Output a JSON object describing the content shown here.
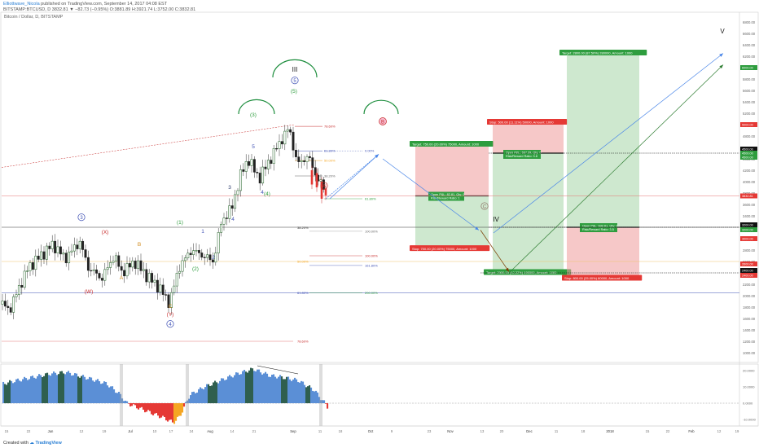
{
  "header": {
    "publisher": "Elliottwave_Nicola",
    "published_text": "published on TradingView.com, September 14, 2017 04:08 EST",
    "ticker_line": "BITSTAMP:BTCUSD, D  3832.81 ▼ −82.73 (−0.95%)  O:3881.89 H:3921.74 L:3752.00 C:3832.81",
    "symbol_title": "Bitcoin / Dollar, D, BITSTAMP"
  },
  "footer": {
    "created_with": "Created with",
    "brand": "TradingView"
  },
  "colors": {
    "bull": "#26a69a",
    "bull_fill": "#2e7d32",
    "bear": "#c62828",
    "wave_blue": "#3f51b5",
    "wave_green": "#2e9d3e",
    "wave_red": "#c62828",
    "wave_orange": "#d08a1a",
    "arc_green": "#1e8e3e",
    "target_green": "#2e9d3e",
    "stop_red": "#e53935",
    "osc_blue": "#5b8fd6",
    "osc_dark": "#2f5f4f",
    "osc_red": "#e53935",
    "osc_orange": "#f5a623"
  },
  "chart_data": {
    "type": "candlestick",
    "x_ticks": [
      "15",
      "22",
      "Jun",
      "12",
      "19",
      "Jul",
      "10",
      "17",
      "24",
      "Aug",
      "14",
      "21",
      "Sep",
      "11",
      "18",
      "Oct",
      "9",
      "23",
      "Nov",
      "13",
      "20",
      "Dec",
      "11",
      "18",
      "2018",
      "15",
      "22",
      "Feb",
      "12",
      "19"
    ],
    "y_ticks": [
      "6800.00",
      "6600.00",
      "6400.00",
      "6200.00",
      "6000.00",
      "5800.00",
      "5600.00",
      "5400.00",
      "5200.00",
      "5000.00",
      "4800.00",
      "4600.00",
      "4400.00",
      "4200.00",
      "4000.00",
      "3800.00",
      "3600.00",
      "3400.00",
      "3200.00",
      "3000.00",
      "2800.00",
      "2600.00",
      "2400.00",
      "2200.00",
      "2000.00",
      "1800.00",
      "1600.00",
      "1400.00",
      "1200.00",
      "1000.00"
    ],
    "ylim": [
      900,
      6800
    ],
    "price_label": "3832.81",
    "right_axis_tags": [
      "6000.00",
      "5000.00",
      "4500.00",
      "4500.00",
      "4500.00",
      "3200.00",
      "3200.00",
      "3000.00",
      "2600.00",
      "2400.00",
      "2400.00"
    ],
    "fib_levels": [
      {
        "label": "78.60%"
      },
      {
        "label": "61.80%"
      },
      {
        "label": "50.00%"
      },
      {
        "label": "38.20%"
      },
      {
        "label": "0.00%"
      },
      {
        "label": "61.80%"
      },
      {
        "label": "100.00%"
      },
      {
        "label": "38.20%"
      },
      {
        "label": "50.00%"
      },
      {
        "label": "61.80%"
      },
      {
        "label": "78.60%"
      },
      {
        "label": "100.00%"
      },
      {
        "label": "161.80%"
      },
      {
        "label": "200.00%"
      }
    ],
    "wave_labels": {
      "blue_circled": [
        "3",
        "4",
        "5"
      ],
      "blue": [
        "5",
        "4",
        "3",
        "1",
        "2"
      ],
      "green_paren": [
        "(5)",
        "(3)",
        "(4)",
        "(1)",
        "(2)"
      ],
      "green": [
        "3",
        "4"
      ],
      "red_paren": [
        "(X)",
        "(W)",
        "(Y)"
      ],
      "orange": [
        "B",
        "A",
        "C"
      ],
      "roman": [
        "III",
        "IV",
        "V"
      ],
      "circled_red": [
        "A",
        "B"
      ],
      "circled_orange": [
        "C"
      ]
    },
    "positions": [
      {
        "kind": "short",
        "target": "Target: 750.00 (20.00%) 75000, Amount: 1000",
        "stop": "Stop: 750.00 (20.00%) 75000, Amount: 1000",
        "pnl": "Open P&L: 82.81, Qty: 0",
        "rr": "Risk/Reward Ratio: 1"
      },
      {
        "kind": "long",
        "target": "Target: 2800.00 (87.50%) 280000, Amount: 1000",
        "stop": "Stop: 800.00 (25.00%) 80000, Amount: 1000",
        "pnl": "Open P&L: 632.61, Qty: 0",
        "rr": "Risk/Reward Ratio: 3.5"
      },
      {
        "kind": "short",
        "target": "Target: 2900.00 (42.22%) 190000, Amount: 1000",
        "stop": "Stop: 500.00 (11.11%) 50000, Amount: 1000",
        "pnl": "Open P&L: 667.39, Qty: 0",
        "rr": "Risk/Reward Ratio: 3.8"
      }
    ],
    "oscillator": {
      "y_ticks": [
        "20.0000",
        "10.0000",
        "0.0000",
        "-10.0000"
      ],
      "ylim": [
        -14,
        24
      ]
    }
  }
}
